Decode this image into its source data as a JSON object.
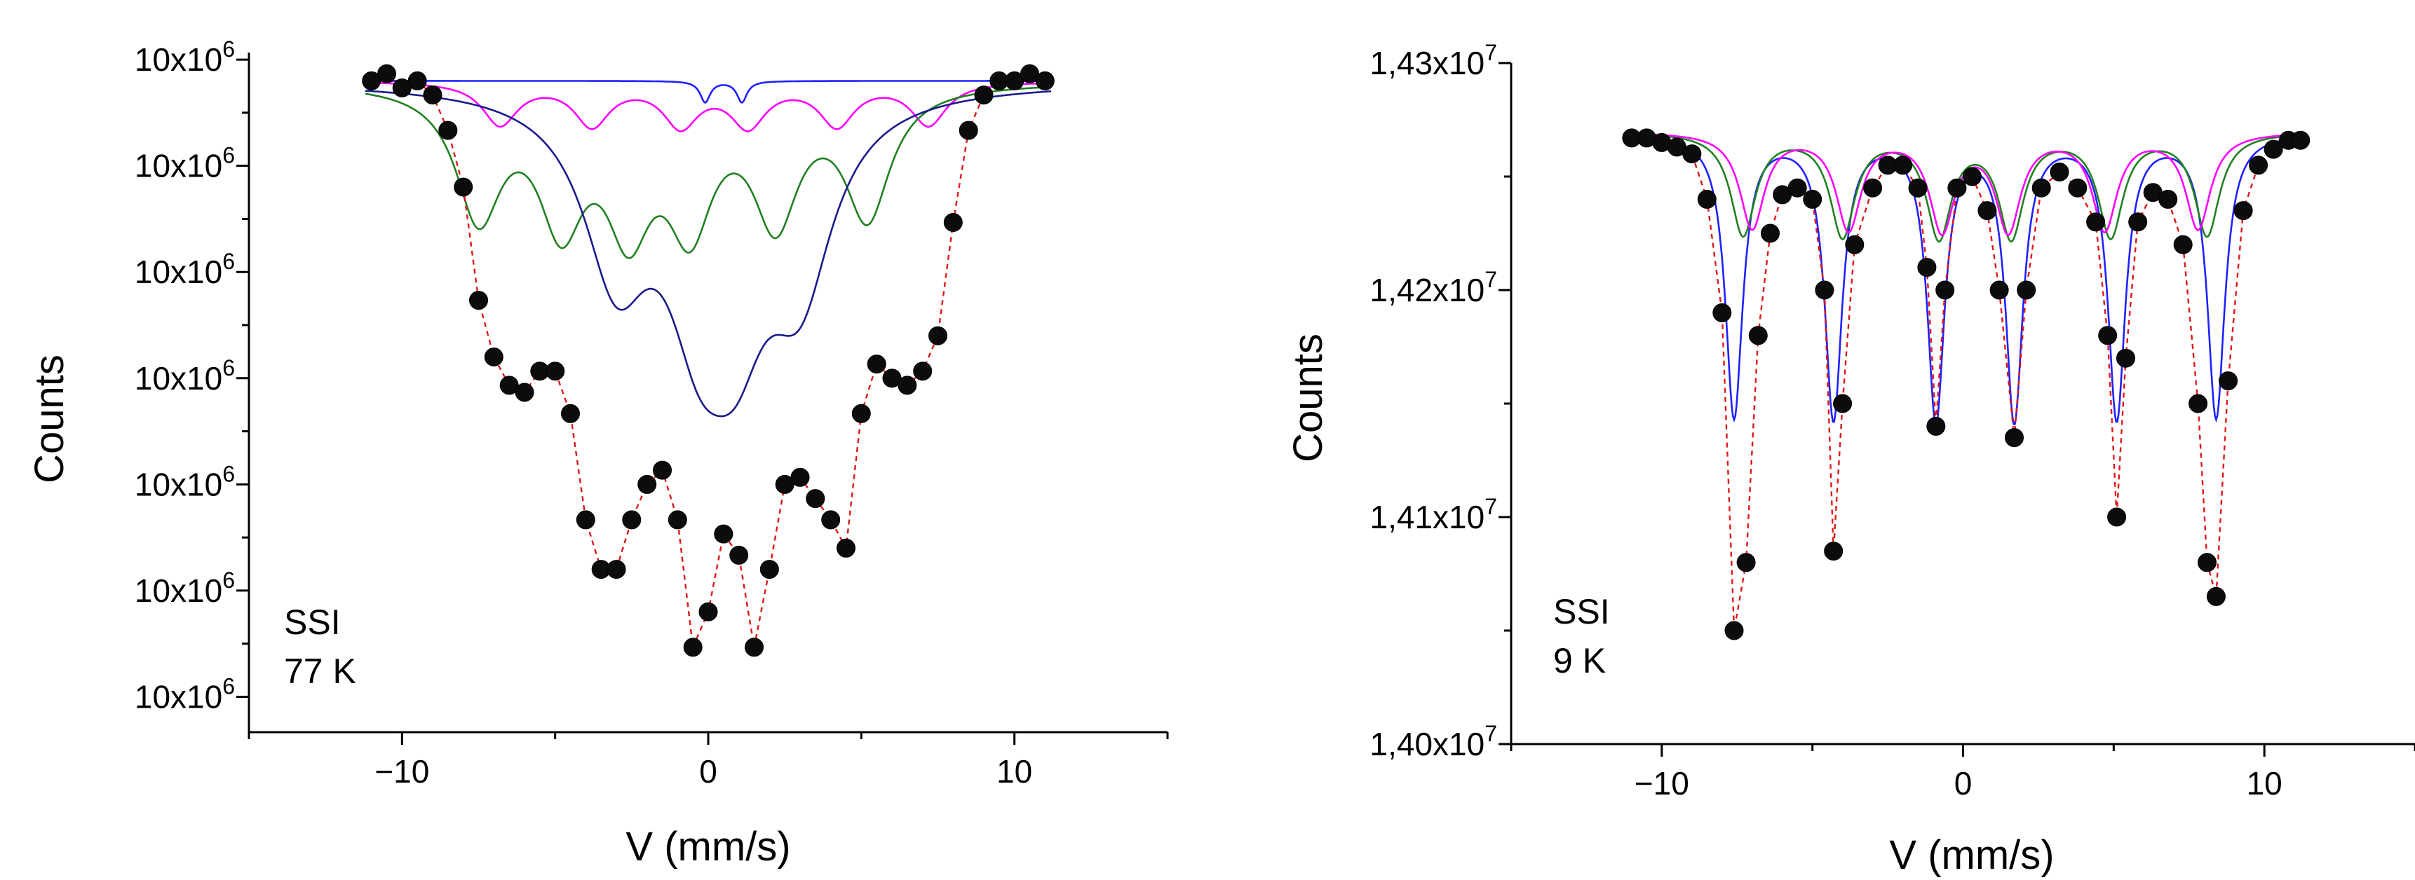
{
  "chart_data": [
    {
      "type": "scatter",
      "title": "",
      "xlabel": "V (mm/s)",
      "ylabel": "Counts",
      "xlim": [
        -15,
        15
      ],
      "ylim": [
        9945000,
        10041000
      ],
      "x_ticks": [
        -10,
        0,
        10
      ],
      "y_tick_values": [
        9950000,
        9965000,
        9980000,
        9995000,
        10010000,
        10025000,
        10040000
      ],
      "y_tick_mantissa": [
        "10x10",
        "10x10",
        "10x10",
        "10x10",
        "10x10",
        "10x10",
        "10x10"
      ],
      "y_tick_exponent": "6",
      "annotation": [
        "SSI",
        "77 K"
      ],
      "colors": {
        "data": "#0c0c0c",
        "sextet_a": "#ff00ff",
        "sextet_b": "#208020",
        "sextet_c": "#1a1a8c",
        "baseline": "#2020ff",
        "total_fit": "#e01818"
      },
      "baseline_counts": 10037000,
      "components": [
        {
          "color": "#ff00ff",
          "positions": [
            -6.8,
            -3.8,
            -0.9,
            1.3,
            4.2,
            7.2
          ],
          "depth": 6000,
          "width": 0.7
        },
        {
          "color": "#208020",
          "positions": [
            -7.5,
            -4.8,
            -2.6,
            -0.6,
            2.2,
            5.2
          ],
          "depth": 18000,
          "width": 0.9
        },
        {
          "color": "#1a1a8c",
          "positions": [
            -3.0,
            -0.3,
            0.9,
            3.0
          ],
          "depth": 24000,
          "width": 1.3
        },
        {
          "color": "#2020ff",
          "positions": [
            -0.1,
            1.1
          ],
          "depth": 3000,
          "width": 0.2
        }
      ],
      "series": [
        {
          "name": "",
          "x": [
            -11,
            -10.5,
            -10,
            -9.5,
            -9,
            -8.5,
            -8,
            -7.5,
            -7,
            -6.5,
            -6,
            -5.5,
            -5,
            -4.5,
            -4,
            -3.5,
            -3,
            -2.5,
            -2,
            -1.5,
            -1,
            -0.5,
            0,
            0.5,
            1,
            1.5,
            2,
            2.5,
            3,
            3.5,
            4,
            4.5,
            5,
            5.5,
            6,
            6.5,
            7,
            7.5,
            8,
            8.5,
            9,
            9.5,
            10,
            10.5,
            11
          ],
          "y": [
            10037000,
            10038000,
            10036000,
            10037000,
            10035000,
            10030000,
            10022000,
            10006000,
            9998000,
            9994000,
            9993000,
            9996000,
            9996000,
            9990000,
            9975000,
            9968000,
            9968000,
            9975000,
            9980000,
            9982000,
            9975000,
            9957000,
            9962000,
            9973000,
            9970000,
            9957000,
            9968000,
            9980000,
            9981000,
            9978000,
            9975000,
            9971000,
            9990000,
            9997000,
            9995000,
            9994000,
            9996000,
            10001000,
            10017000,
            10030000,
            10035000,
            10037000,
            10037000,
            10038000,
            10037000
          ]
        }
      ]
    },
    {
      "type": "scatter",
      "title": "",
      "xlabel": "V (mm/s)",
      "ylabel": "Counts",
      "xlim": [
        -15,
        15
      ],
      "ylim": [
        14000000,
        14300000
      ],
      "x_ticks": [
        -10,
        0,
        10
      ],
      "y_tick_values": [
        14000000,
        14100000,
        14200000,
        14300000
      ],
      "y_tick_mantissa": [
        "1,40x10",
        "1,41x10",
        "1,42x10",
        "1,43x10"
      ],
      "y_tick_exponent": "7",
      "annotation": [
        "SSI",
        "9 K"
      ],
      "colors": {
        "data": "#0c0c0c",
        "sextet_a": "#ff00ff",
        "sextet_b": "#208020",
        "sextet_c": "#2020ff",
        "total_fit": "#e01818"
      },
      "baseline_counts": 14270000,
      "components": [
        {
          "color": "#2020ff",
          "positions": [
            -7.6,
            -4.3,
            -0.9,
            1.7,
            5.1,
            8.4
          ],
          "depth": 125000,
          "width": 0.35
        },
        {
          "color": "#208020",
          "positions": [
            -7.3,
            -4.0,
            -0.8,
            1.6,
            4.9,
            8.1
          ],
          "depth": 45000,
          "width": 0.5
        },
        {
          "color": "#ff00ff",
          "positions": [
            -7.0,
            -3.8,
            -0.7,
            1.5,
            4.7,
            7.8
          ],
          "depth": 42000,
          "width": 0.5
        }
      ],
      "series": [
        {
          "name": "",
          "x": [
            -11,
            -10.5,
            -10,
            -9.5,
            -9,
            -8.5,
            -8,
            -7.6,
            -7.2,
            -6.8,
            -6.4,
            -6,
            -5.5,
            -5,
            -4.6,
            -4.3,
            -4,
            -3.6,
            -3,
            -2.5,
            -2,
            -1.5,
            -1.2,
            -0.9,
            -0.6,
            -0.2,
            0.3,
            0.8,
            1.2,
            1.7,
            2.1,
            2.6,
            3.2,
            3.8,
            4.4,
            4.8,
            5.1,
            5.4,
            5.8,
            6.3,
            6.8,
            7.3,
            7.8,
            8.1,
            8.4,
            8.8,
            9.3,
            9.8,
            10.3,
            10.8,
            11.2
          ],
          "y": [
            14267000,
            14267000,
            14265000,
            14263000,
            14260000,
            14240000,
            14190000,
            14050000,
            14080000,
            14180000,
            14225000,
            14242000,
            14245000,
            14240000,
            14200000,
            14085000,
            14150000,
            14220000,
            14245000,
            14255000,
            14255000,
            14245000,
            14210000,
            14140000,
            14200000,
            14245000,
            14250000,
            14235000,
            14200000,
            14135000,
            14200000,
            14245000,
            14252000,
            14245000,
            14230000,
            14180000,
            14100000,
            14170000,
            14230000,
            14243000,
            14240000,
            14220000,
            14150000,
            14080000,
            14065000,
            14160000,
            14235000,
            14255000,
            14262000,
            14266000,
            14266000
          ]
        }
      ]
    }
  ]
}
